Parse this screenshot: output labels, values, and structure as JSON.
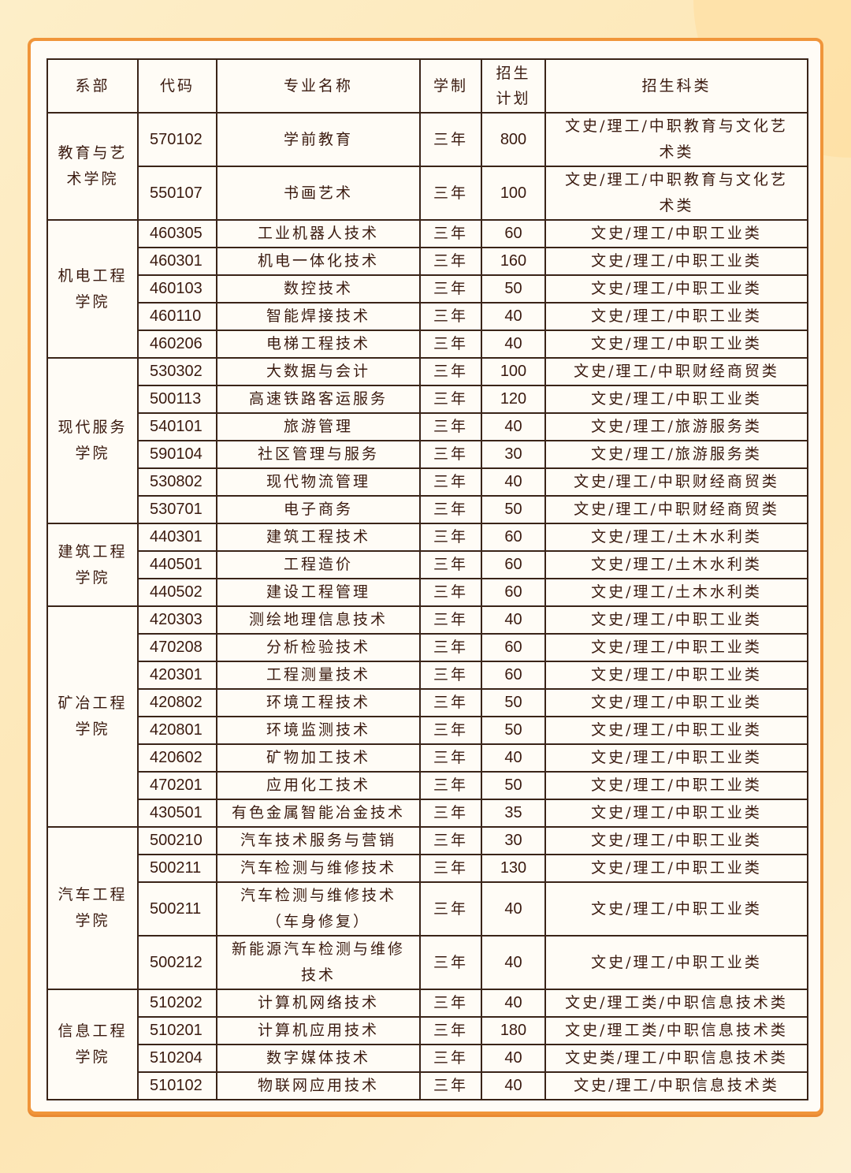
{
  "colors": {
    "card_border": "#f0953a",
    "text": "#3a1a0f",
    "background": "#fde6b4"
  },
  "header": {
    "dept": "系部",
    "code": "代码",
    "major": "专业名称",
    "years": "学制",
    "plan": "招生计划",
    "category": "招生科类"
  },
  "departments": [
    {
      "name": "教育与艺术学院",
      "rows": [
        {
          "code": "570102",
          "major": "学前教育",
          "years": "三年",
          "plan": "800",
          "category": "文史/理工/中职教育与文化艺术类",
          "tall": true
        },
        {
          "code": "550107",
          "major": "书画艺术",
          "years": "三年",
          "plan": "100",
          "category": "文史/理工/中职教育与文化艺术类",
          "tall": true
        }
      ]
    },
    {
      "name": "机电工程学院",
      "rows": [
        {
          "code": "460305",
          "major": "工业机器人技术",
          "years": "三年",
          "plan": "60",
          "category": "文史/理工/中职工业类"
        },
        {
          "code": "460301",
          "major": "机电一体化技术",
          "years": "三年",
          "plan": "160",
          "category": "文史/理工/中职工业类"
        },
        {
          "code": "460103",
          "major": "数控技术",
          "years": "三年",
          "plan": "50",
          "category": "文史/理工/中职工业类"
        },
        {
          "code": "460110",
          "major": "智能焊接技术",
          "years": "三年",
          "plan": "40",
          "category": "文史/理工/中职工业类"
        },
        {
          "code": "460206",
          "major": "电梯工程技术",
          "years": "三年",
          "plan": "40",
          "category": "文史/理工/中职工业类"
        }
      ]
    },
    {
      "name": "现代服务学院",
      "rows": [
        {
          "code": "530302",
          "major": "大数据与会计",
          "years": "三年",
          "plan": "100",
          "category": "文史/理工/中职财经商贸类"
        },
        {
          "code": "500113",
          "major": "高速铁路客运服务",
          "years": "三年",
          "plan": "120",
          "category": "文史/理工/中职工业类"
        },
        {
          "code": "540101",
          "major": "旅游管理",
          "years": "三年",
          "plan": "40",
          "category": "文史/理工/旅游服务类"
        },
        {
          "code": "590104",
          "major": "社区管理与服务",
          "years": "三年",
          "plan": "30",
          "category": "文史/理工/旅游服务类"
        },
        {
          "code": "530802",
          "major": "现代物流管理",
          "years": "三年",
          "plan": "40",
          "category": "文史/理工/中职财经商贸类"
        },
        {
          "code": "530701",
          "major": "电子商务",
          "years": "三年",
          "plan": "50",
          "category": "文史/理工/中职财经商贸类"
        }
      ]
    },
    {
      "name": "建筑工程学院",
      "rows": [
        {
          "code": "440301",
          "major": "建筑工程技术",
          "years": "三年",
          "plan": "60",
          "category": "文史/理工/土木水利类"
        },
        {
          "code": "440501",
          "major": "工程造价",
          "years": "三年",
          "plan": "60",
          "category": "文史/理工/土木水利类"
        },
        {
          "code": "440502",
          "major": "建设工程管理",
          "years": "三年",
          "plan": "60",
          "category": "文史/理工/土木水利类"
        }
      ]
    },
    {
      "name": "矿冶工程学院",
      "rows": [
        {
          "code": "420303",
          "major": "测绘地理信息技术",
          "years": "三年",
          "plan": "40",
          "category": "文史/理工/中职工业类"
        },
        {
          "code": "470208",
          "major": "分析检验技术",
          "years": "三年",
          "plan": "60",
          "category": "文史/理工/中职工业类"
        },
        {
          "code": "420301",
          "major": "工程测量技术",
          "years": "三年",
          "plan": "60",
          "category": "文史/理工/中职工业类"
        },
        {
          "code": "420802",
          "major": "环境工程技术",
          "years": "三年",
          "plan": "50",
          "category": "文史/理工/中职工业类"
        },
        {
          "code": "420801",
          "major": "环境监测技术",
          "years": "三年",
          "plan": "50",
          "category": "文史/理工/中职工业类"
        },
        {
          "code": "420602",
          "major": "矿物加工技术",
          "years": "三年",
          "plan": "40",
          "category": "文史/理工/中职工业类"
        },
        {
          "code": "470201",
          "major": "应用化工技术",
          "years": "三年",
          "plan": "50",
          "category": "文史/理工/中职工业类"
        },
        {
          "code": "430501",
          "major": "有色金属智能冶金技术",
          "years": "三年",
          "plan": "35",
          "category": "文史/理工/中职工业类"
        }
      ]
    },
    {
      "name": "汽车工程学院",
      "rows": [
        {
          "code": "500210",
          "major": "汽车技术服务与营销",
          "years": "三年",
          "plan": "30",
          "category": "文史/理工/中职工业类"
        },
        {
          "code": "500211",
          "major": "汽车检测与维修技术",
          "years": "三年",
          "plan": "130",
          "category": "文史/理工/中职工业类"
        },
        {
          "code": "500211",
          "major": "汽车检测与维修技术（车身修复）",
          "years": "三年",
          "plan": "40",
          "category": "文史/理工/中职工业类",
          "tall": true
        },
        {
          "code": "500212",
          "major": "新能源汽车检测与维修技术",
          "years": "三年",
          "plan": "40",
          "category": "文史/理工/中职工业类",
          "tall": true
        }
      ]
    },
    {
      "name": "信息工程学院",
      "rows": [
        {
          "code": "510202",
          "major": "计算机网络技术",
          "years": "三年",
          "plan": "40",
          "category": "文史/理工类/中职信息技术类"
        },
        {
          "code": "510201",
          "major": "计算机应用技术",
          "years": "三年",
          "plan": "180",
          "category": "文史/理工类/中职信息技术类"
        },
        {
          "code": "510204",
          "major": "数字媒体技术",
          "years": "三年",
          "plan": "40",
          "category": "文史类/理工/中职信息技术类"
        },
        {
          "code": "510102",
          "major": "物联网应用技术",
          "years": "三年",
          "plan": "40",
          "category": "文史/理工/中职信息技术类"
        }
      ]
    }
  ]
}
